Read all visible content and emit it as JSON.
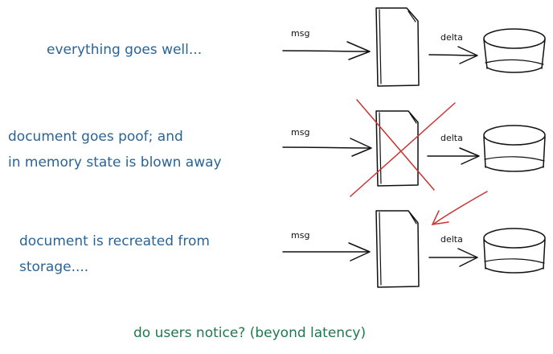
{
  "rows": [
    {
      "caption_lines": [
        "everything goes well..."
      ],
      "msg_label": "msg",
      "delta_label": "delta"
    },
    {
      "caption_lines": [
        "document goes poof; and",
        "in memory state is blown away"
      ],
      "msg_label": "msg",
      "delta_label": "delta"
    },
    {
      "caption_lines": [
        "document is recreated from",
        "storage...."
      ],
      "msg_label": "msg",
      "delta_label": "delta"
    }
  ],
  "footer": "do users notice? (beyond latency)",
  "colors": {
    "caption_text": "#2a6496",
    "footer_text": "#1e7a4c",
    "strike": "#cc3333",
    "ink": "#111111"
  }
}
